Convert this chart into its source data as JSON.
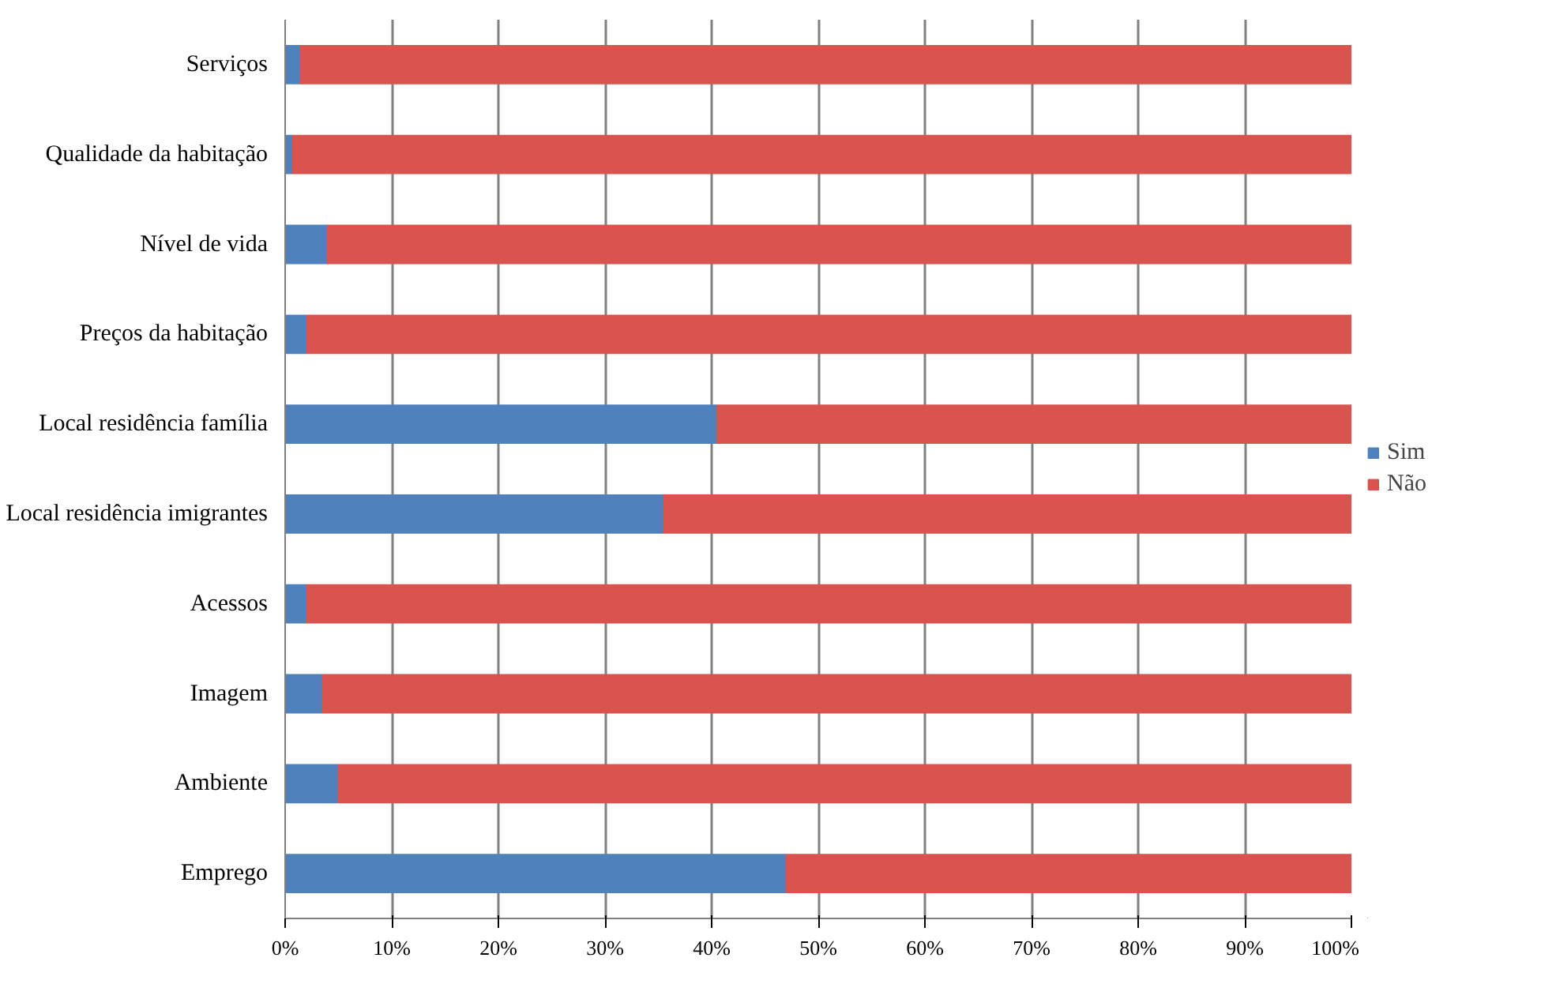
{
  "chart_data": {
    "type": "bar",
    "orientation": "horizontal",
    "stacked": true,
    "categories": [
      "Serviços",
      "Qualidade da habitação",
      "Nível de vida",
      "Preços da habitação",
      "Local residência família",
      "Local residência imigrantes",
      "Acessos",
      "Imagem",
      "Ambiente",
      "Emprego"
    ],
    "series": [
      {
        "name": "Sim",
        "color": "#4f81bd",
        "values": [
          1.4,
          0.7,
          4,
          2,
          40.5,
          35.5,
          2,
          3.5,
          5,
          47
        ]
      },
      {
        "name": "Não",
        "color": "#d9534f",
        "values": [
          98.6,
          99.3,
          96,
          98,
          59.5,
          64.5,
          98,
          96.5,
          95,
          53
        ]
      }
    ],
    "xlim": [
      0,
      100
    ],
    "xticks": [
      {
        "value": 0,
        "label": "0%"
      },
      {
        "value": 10,
        "label": "10%"
      },
      {
        "value": 20,
        "label": "20%"
      },
      {
        "value": 30,
        "label": "30%"
      },
      {
        "value": 40,
        "label": "40%"
      },
      {
        "value": 50,
        "label": "50%"
      },
      {
        "value": 60,
        "label": "60%"
      },
      {
        "value": 70,
        "label": "70%"
      },
      {
        "value": 80,
        "label": "80%"
      },
      {
        "value": 90,
        "label": "90%"
      },
      {
        "value": 100,
        "label": "100%"
      }
    ],
    "grid": "x",
    "legend": "right"
  }
}
